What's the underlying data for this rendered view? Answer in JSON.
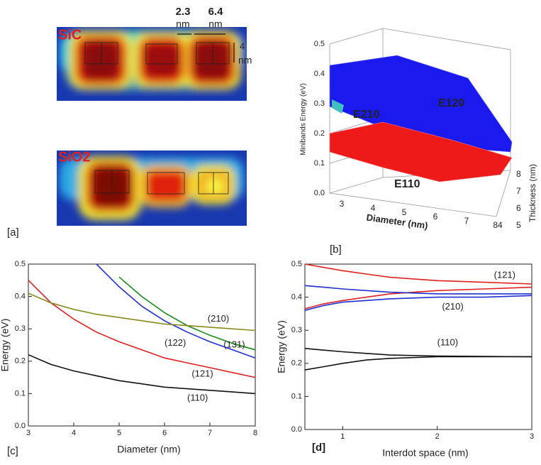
{
  "panel_a": {
    "label": "[a]",
    "top_material": "SiC",
    "bottom_material": "SiO2",
    "dimensions": [
      {
        "value": "2.3",
        "unit": "nm"
      },
      {
        "value": "6.4",
        "unit": "nm"
      },
      {
        "value": "4",
        "unit": "nm"
      }
    ]
  },
  "panel_b": {
    "label": "[b]",
    "z_label": "Minibands Energy (eV)",
    "x_label": "Diameter (nm)",
    "y_label": "Thickness (nm)",
    "z_ticks": [
      "0.0",
      "0.1",
      "0.2",
      "0.3",
      "0.4",
      "0.5"
    ],
    "x_ticks": [
      "3",
      "4",
      "5",
      "6",
      "7",
      "84"
    ],
    "y_ticks": [
      "8",
      "7",
      "6",
      "5"
    ],
    "surfaces": [
      "E120",
      "E210",
      "E110"
    ]
  },
  "chart_data": [
    {
      "type": "line",
      "panel_label": "[c]",
      "x_label": "Diameter (nm)",
      "y_label": "Energy (eV)",
      "x": [
        3,
        3.5,
        4,
        4.5,
        5,
        5.5,
        6,
        6.5,
        7,
        7.5,
        8
      ],
      "xlim": [
        3,
        8
      ],
      "xticks": [
        3,
        4,
        5,
        6,
        7,
        8
      ],
      "ylim": [
        0,
        0.5
      ],
      "yticks": [
        {
          "value": 0,
          "label": "0.0"
        },
        0.1,
        0.2,
        0.3,
        0.4,
        0.5
      ],
      "series": [
        {
          "name": "(110)",
          "color": "#111111",
          "values": [
            0.22,
            0.19,
            0.17,
            0.155,
            0.14,
            0.13,
            0.12,
            0.115,
            0.11,
            0.105,
            0.1
          ]
        },
        {
          "name": "(121)",
          "color": "#e02020",
          "values": [
            0.45,
            0.38,
            0.33,
            0.29,
            0.26,
            0.235,
            0.21,
            0.195,
            0.18,
            0.165,
            0.15
          ]
        },
        {
          "name": "(122)",
          "color": "#2030d0",
          "values": [
            null,
            null,
            null,
            0.5,
            0.43,
            0.37,
            0.325,
            0.29,
            0.26,
            0.235,
            0.21
          ]
        },
        {
          "name": "(131)",
          "color": "#1a8a1a",
          "values": [
            null,
            null,
            null,
            null,
            0.46,
            0.4,
            0.35,
            0.31,
            0.28,
            0.255,
            0.235
          ]
        },
        {
          "name": "(210)",
          "color": "#8a8a20",
          "values": [
            0.41,
            0.38,
            0.36,
            0.345,
            0.335,
            0.325,
            0.315,
            0.31,
            0.305,
            0.3,
            0.295
          ]
        }
      ]
    },
    {
      "type": "line",
      "panel_label": "[d]",
      "x_label": "Interdot space (nm)",
      "y_label": "Energy (eV)",
      "x": [
        0.6,
        0.8,
        1,
        1.25,
        1.5,
        2,
        2.5,
        3
      ],
      "xlim": [
        0.6,
        3
      ],
      "xticks": [
        1,
        2,
        3
      ],
      "ylim": [
        0,
        0.5
      ],
      "yticks": [
        {
          "value": 0,
          "label": "0.0"
        },
        0.1,
        0.2,
        0.3,
        0.4,
        0.5
      ],
      "series": [
        {
          "name": "(121)",
          "color": "#e02020",
          "values": [
            0.5,
            0.49,
            0.48,
            0.47,
            0.46,
            0.45,
            0.445,
            0.44
          ]
        },
        {
          "color": "#e02020",
          "values": [
            0.365,
            0.38,
            0.39,
            0.4,
            0.41,
            0.42,
            0.425,
            0.43
          ]
        },
        {
          "name": "(210)",
          "color": "#2030d0",
          "values": [
            0.435,
            0.43,
            0.425,
            0.42,
            0.415,
            0.41,
            0.41,
            0.41
          ]
        },
        {
          "color": "#2030d0",
          "values": [
            0.36,
            0.375,
            0.385,
            0.39,
            0.395,
            0.4,
            0.4,
            0.405
          ]
        },
        {
          "name": "(110)",
          "color": "#111111",
          "values": [
            0.245,
            0.24,
            0.235,
            0.23,
            0.225,
            0.222,
            0.221,
            0.22
          ]
        },
        {
          "color": "#111111",
          "values": [
            0.18,
            0.19,
            0.2,
            0.21,
            0.215,
            0.22,
            0.22,
            0.22
          ]
        }
      ]
    }
  ]
}
